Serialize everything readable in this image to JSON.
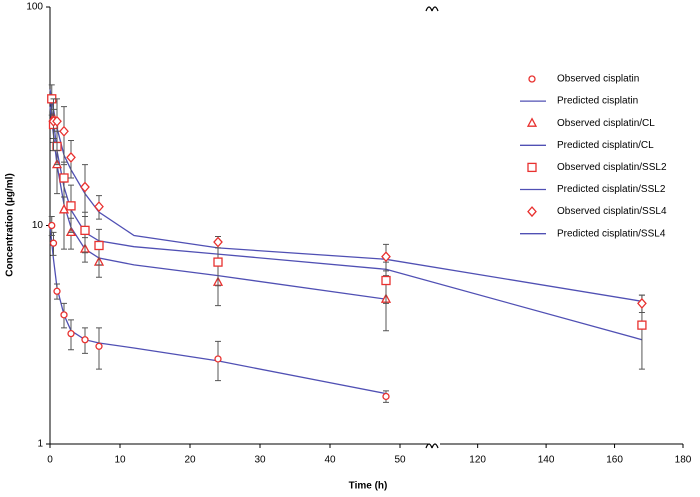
{
  "chart_data": {
    "type": "line",
    "x_label": "Time (h)",
    "y_label": "Concentration (µg/ml)",
    "log_y": true,
    "ylim": [
      1,
      100
    ],
    "yticks": [
      1,
      10,
      100
    ],
    "x_segments": [
      {
        "xlim": [
          0,
          54
        ],
        "xticks": [
          0,
          10,
          20,
          30,
          40,
          50
        ]
      },
      {
        "xlim": [
          109,
          180
        ],
        "xticks": [
          120,
          140,
          160,
          180
        ]
      }
    ],
    "legend": "upper right",
    "series": [
      {
        "name": "Observed cisplatin",
        "marker": "circle",
        "color": "#e8312f",
        "x": [
          0.25,
          0.5,
          1,
          2,
          3,
          5,
          7,
          24,
          48
        ],
        "values": [
          10,
          8.3,
          5.0,
          3.9,
          3.2,
          3.0,
          2.8,
          2.45,
          1.65
        ],
        "errors": [
          1,
          1,
          0.4,
          0.5,
          0.5,
          0.4,
          0.6,
          0.5,
          0.1
        ]
      },
      {
        "name": "Predicted cisplatin",
        "color": "#5050b4",
        "x": [
          0,
          0.5,
          1,
          2,
          3,
          5,
          7,
          12,
          24,
          48
        ],
        "values": [
          10,
          7,
          5.2,
          3.9,
          3.3,
          3.0,
          2.9,
          2.75,
          2.4,
          1.7
        ]
      },
      {
        "name": "Observed cisplatin/CL",
        "marker": "triangle",
        "color": "#e8312f",
        "x": [
          0.5,
          1,
          2,
          3,
          5,
          7,
          24,
          48
        ],
        "values": [
          31,
          19,
          11.8,
          9.3,
          7.8,
          6.8,
          5.5,
          4.6
        ],
        "errors": [
          6,
          5,
          4,
          1.5,
          1,
          1,
          1.2,
          1.3
        ]
      },
      {
        "name": "Predicted cisplatin/CL",
        "color": "#5050b4",
        "x": [
          0,
          0.5,
          1,
          2,
          3,
          5,
          7,
          12,
          24,
          48
        ],
        "values": [
          35,
          26,
          19,
          12.5,
          9.8,
          7.8,
          7.1,
          6.6,
          5.9,
          4.6
        ]
      },
      {
        "name": "Observed cisplatin/SSL2",
        "marker": "square",
        "color": "#e8312f",
        "x": [
          0.25,
          0.5,
          1,
          2,
          3,
          5,
          7,
          24,
          48,
          168
        ],
        "values": [
          38,
          29,
          23,
          16.5,
          12.3,
          9.5,
          8.1,
          6.8,
          5.6,
          3.5
        ],
        "errors": [
          6,
          5,
          4,
          3,
          3,
          2,
          1.5,
          1.5,
          1.2,
          1.3
        ]
      },
      {
        "name": "Predicted cisplatin/SSL2",
        "color": "#5050b4",
        "x": [
          0,
          0.5,
          1,
          2,
          3,
          5,
          7,
          12,
          24,
          48,
          168
        ],
        "values": [
          38,
          30,
          22,
          15,
          11.8,
          9.3,
          8.5,
          8.0,
          7.4,
          6.3,
          3.0
        ]
      },
      {
        "name": "Observed cisplatin/SSL4",
        "marker": "diamond",
        "color": "#e8312f",
        "x": [
          0.5,
          1,
          2,
          3,
          5,
          7,
          24,
          48,
          168
        ],
        "values": [
          30,
          30,
          27,
          20.5,
          15,
          12.2,
          8.4,
          7.2,
          4.4
        ],
        "errors": [
          8,
          8,
          8,
          4,
          4,
          1.5,
          0.5,
          1,
          0.4
        ]
      },
      {
        "name": "Predicted cisplatin/SSL4",
        "color": "#5050b4",
        "x": [
          0,
          0.5,
          1,
          2,
          3,
          5,
          7,
          12,
          24,
          48,
          168
        ],
        "values": [
          42,
          34,
          28,
          21,
          18,
          14,
          11.5,
          9.0,
          7.9,
          7.0,
          4.5
        ]
      }
    ]
  }
}
